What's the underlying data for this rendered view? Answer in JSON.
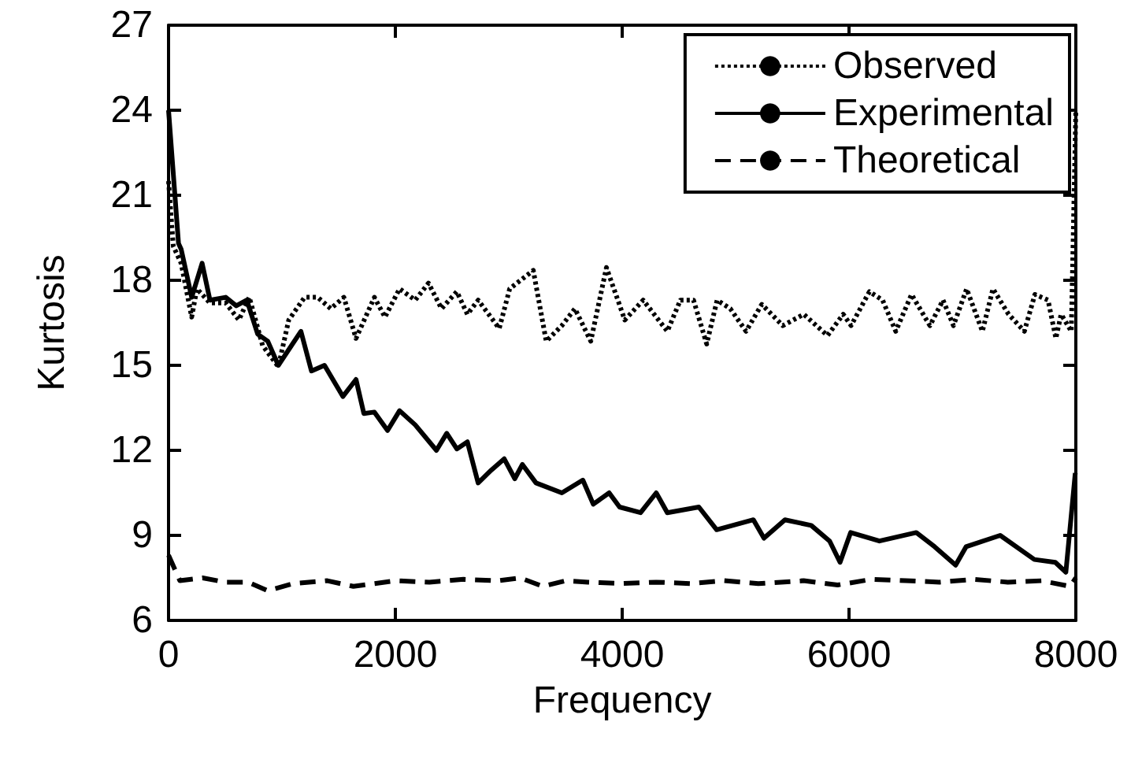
{
  "chart_data": {
    "type": "line",
    "xlabel": "Frequency",
    "ylabel": "Kurtosis",
    "xlim": [
      0,
      8000
    ],
    "xticks": [
      0,
      2000,
      4000,
      6000,
      8000
    ],
    "ylim": [
      6,
      27
    ],
    "yticks": [
      6,
      9,
      12,
      15,
      18,
      21,
      24,
      27
    ],
    "grid": false,
    "legend": "top right",
    "marker": "none",
    "series": [
      {
        "name": "Observed",
        "color": "#000000",
        "line_style": "dotted",
        "x": [
          0,
          42,
          111,
          204,
          250,
          365,
          504,
          620,
          712,
          829,
          968,
          1060,
          1200,
          1315,
          1430,
          1546,
          1653,
          1815,
          1908,
          2037,
          2175,
          2292,
          2407,
          2542,
          2635,
          2730,
          2916,
          3008,
          3216,
          3330,
          3468,
          3583,
          3723,
          3861,
          4023,
          4185,
          4398,
          4513,
          4629,
          4745,
          4837,
          4953,
          5092,
          5231,
          5416,
          5601,
          5810,
          5949,
          6018,
          6180,
          6296,
          6412,
          6551,
          6713,
          6829,
          6921,
          7037,
          7176,
          7269,
          7407,
          7546,
          7639,
          7755,
          7824,
          7870,
          7960,
          8000
        ],
        "values": [
          21.5,
          19.2,
          18.6,
          16.7,
          17.7,
          17.2,
          17.2,
          16.6,
          17.4,
          15.7,
          14.95,
          16.6,
          17.4,
          17.4,
          17.0,
          17.4,
          15.95,
          17.4,
          16.7,
          17.7,
          17.3,
          17.9,
          17.0,
          17.6,
          16.8,
          17.3,
          16.3,
          17.7,
          18.35,
          15.85,
          16.4,
          17.0,
          15.85,
          18.45,
          16.6,
          17.3,
          16.2,
          17.3,
          17.3,
          15.75,
          17.3,
          17.0,
          16.2,
          17.15,
          16.4,
          16.8,
          16.05,
          16.8,
          16.4,
          17.6,
          17.3,
          16.2,
          17.5,
          16.4,
          17.3,
          16.4,
          17.7,
          16.2,
          17.7,
          16.8,
          16.2,
          17.5,
          17.3,
          15.95,
          16.8,
          16.2,
          24.0
        ]
      },
      {
        "name": "Experimental",
        "color": "#000000",
        "line_style": "solid",
        "x": [
          0,
          88,
          111,
          204,
          296,
          365,
          504,
          597,
          690,
          786,
          875,
          968,
          1167,
          1260,
          1375,
          1537,
          1653,
          1722,
          1815,
          1931,
          2037,
          2175,
          2362,
          2453,
          2542,
          2635,
          2730,
          2845,
          2960,
          3053,
          3120,
          3240,
          3468,
          3653,
          3745,
          3885,
          3977,
          4162,
          4300,
          4398,
          4676,
          4833,
          5157,
          5250,
          5435,
          5667,
          5829,
          5921,
          6014,
          6268,
          6593,
          6755,
          6940,
          7032,
          7333,
          7634,
          7819,
          7912,
          7995
        ],
        "values": [
          24.0,
          19.3,
          19.1,
          17.4,
          18.6,
          17.3,
          17.4,
          17.1,
          17.3,
          16.1,
          15.85,
          15.0,
          16.2,
          14.8,
          15.0,
          13.9,
          14.5,
          13.3,
          13.35,
          12.7,
          13.4,
          12.9,
          12.0,
          12.6,
          12.05,
          12.3,
          10.85,
          11.3,
          11.7,
          11.0,
          11.5,
          10.85,
          10.5,
          10.95,
          10.1,
          10.5,
          10.0,
          9.8,
          10.5,
          9.8,
          10.0,
          9.2,
          9.55,
          8.9,
          9.55,
          9.35,
          8.8,
          8.05,
          9.1,
          8.8,
          9.1,
          8.6,
          7.95,
          8.6,
          9.0,
          8.15,
          8.05,
          7.7,
          11.2
        ]
      },
      {
        "name": "Theoretical",
        "color": "#000000",
        "line_style": "dashed",
        "x": [
          0,
          100,
          300,
          500,
          700,
          875,
          1100,
          1400,
          1630,
          2000,
          2300,
          2600,
          2900,
          3100,
          3300,
          3500,
          3700,
          4000,
          4300,
          4600,
          4900,
          5200,
          5400,
          5600,
          5900,
          6200,
          6500,
          6800,
          7100,
          7400,
          7700,
          7950,
          8000
        ],
        "values": [
          8.3,
          7.4,
          7.5,
          7.35,
          7.35,
          7.05,
          7.3,
          7.4,
          7.2,
          7.4,
          7.35,
          7.45,
          7.4,
          7.5,
          7.2,
          7.4,
          7.35,
          7.3,
          7.35,
          7.3,
          7.4,
          7.3,
          7.35,
          7.4,
          7.25,
          7.45,
          7.4,
          7.35,
          7.45,
          7.35,
          7.4,
          7.2,
          7.5
        ]
      }
    ]
  }
}
